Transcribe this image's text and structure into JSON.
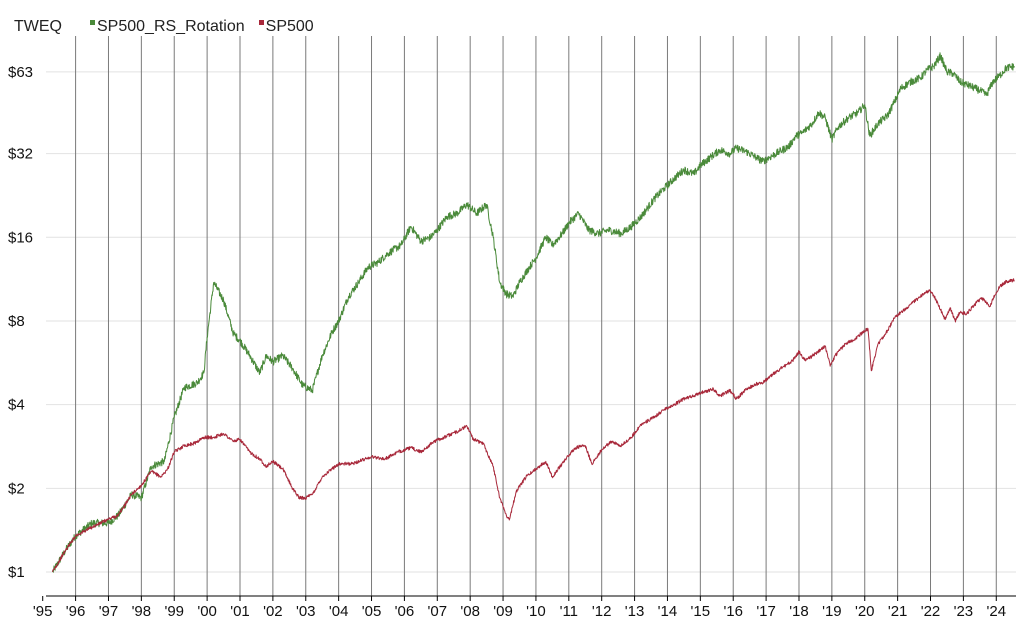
{
  "chart_data": {
    "type": "line",
    "title": "",
    "legend_placement": "top-left",
    "legend_prefix": "TWEQ",
    "y_scale": "log2",
    "grid": {
      "vertical": true,
      "horizontal": true
    },
    "xlim": [
      1995.1,
      2024.6
    ],
    "ylim": [
      0.82,
      82
    ],
    "y_ticks": [
      {
        "value": 1,
        "label": "$1"
      },
      {
        "value": 2,
        "label": "$2"
      },
      {
        "value": 4,
        "label": "$4"
      },
      {
        "value": 8,
        "label": "$8"
      },
      {
        "value": 16,
        "label": "$16"
      },
      {
        "value": 32,
        "label": "$32"
      },
      {
        "value": 63,
        "label": "$63"
      }
    ],
    "x_ticks": [
      {
        "value": 1995,
        "label": "'95"
      },
      {
        "value": 1996,
        "label": "'96"
      },
      {
        "value": 1997,
        "label": "'97"
      },
      {
        "value": 1998,
        "label": "'98"
      },
      {
        "value": 1999,
        "label": "'99"
      },
      {
        "value": 2000,
        "label": "'00"
      },
      {
        "value": 2001,
        "label": "'01"
      },
      {
        "value": 2002,
        "label": "'02"
      },
      {
        "value": 2003,
        "label": "'03"
      },
      {
        "value": 2004,
        "label": "'04"
      },
      {
        "value": 2005,
        "label": "'05"
      },
      {
        "value": 2006,
        "label": "'06"
      },
      {
        "value": 2007,
        "label": "'07"
      },
      {
        "value": 2008,
        "label": "'08"
      },
      {
        "value": 2009,
        "label": "'09"
      },
      {
        "value": 2010,
        "label": "'10"
      },
      {
        "value": 2011,
        "label": "'11"
      },
      {
        "value": 2012,
        "label": "'12"
      },
      {
        "value": 2013,
        "label": "'13"
      },
      {
        "value": 2014,
        "label": "'14"
      },
      {
        "value": 2015,
        "label": "'15"
      },
      {
        "value": 2016,
        "label": "'16"
      },
      {
        "value": 2017,
        "label": "'17"
      },
      {
        "value": 2018,
        "label": "'18"
      },
      {
        "value": 2019,
        "label": "'19"
      },
      {
        "value": 2020,
        "label": "'20"
      },
      {
        "value": 2021,
        "label": "'21"
      },
      {
        "value": 2022,
        "label": "'22"
      },
      {
        "value": 2023,
        "label": "'23"
      },
      {
        "value": 2024,
        "label": "'24"
      }
    ],
    "series": [
      {
        "name": "SP500_RS_Rotation",
        "color": "#4a8a3a",
        "points": [
          [
            1995.3,
            1.0
          ],
          [
            1995.7,
            1.2
          ],
          [
            1996.0,
            1.35
          ],
          [
            1996.5,
            1.5
          ],
          [
            1997.0,
            1.5
          ],
          [
            1997.3,
            1.6
          ],
          [
            1997.7,
            1.9
          ],
          [
            1998.0,
            1.85
          ],
          [
            1998.3,
            2.4
          ],
          [
            1998.7,
            2.5
          ],
          [
            1999.0,
            3.6
          ],
          [
            1999.3,
            4.6
          ],
          [
            1999.7,
            4.8
          ],
          [
            1999.9,
            5.2
          ],
          [
            2000.0,
            7.0
          ],
          [
            2000.2,
            11.0
          ],
          [
            2000.5,
            9.5
          ],
          [
            2000.8,
            7.2
          ],
          [
            2001.0,
            6.8
          ],
          [
            2001.3,
            6.0
          ],
          [
            2001.6,
            5.2
          ],
          [
            2001.8,
            6.0
          ],
          [
            2002.0,
            5.7
          ],
          [
            2002.3,
            6.0
          ],
          [
            2002.6,
            5.4
          ],
          [
            2002.9,
            4.7
          ],
          [
            2003.2,
            4.5
          ],
          [
            2003.5,
            6.0
          ],
          [
            2003.8,
            7.3
          ],
          [
            2004.0,
            8.0
          ],
          [
            2004.3,
            9.8
          ],
          [
            2004.6,
            11.0
          ],
          [
            2004.9,
            12.5
          ],
          [
            2005.2,
            13.0
          ],
          [
            2005.5,
            14.0
          ],
          [
            2005.9,
            15.0
          ],
          [
            2006.2,
            17.5
          ],
          [
            2006.5,
            15.5
          ],
          [
            2006.8,
            16.0
          ],
          [
            2007.0,
            17.0
          ],
          [
            2007.3,
            19.0
          ],
          [
            2007.6,
            19.5
          ],
          [
            2007.9,
            21.0
          ],
          [
            2008.2,
            19.5
          ],
          [
            2008.5,
            21.0
          ],
          [
            2008.7,
            16.0
          ],
          [
            2008.9,
            11.0
          ],
          [
            2009.1,
            10.0
          ],
          [
            2009.3,
            9.8
          ],
          [
            2009.5,
            11.0
          ],
          [
            2009.8,
            12.5
          ],
          [
            2010.0,
            13.5
          ],
          [
            2010.3,
            16.0
          ],
          [
            2010.5,
            15.0
          ],
          [
            2010.8,
            16.5
          ],
          [
            2011.0,
            18.0
          ],
          [
            2011.3,
            19.5
          ],
          [
            2011.6,
            17.0
          ],
          [
            2011.9,
            16.5
          ],
          [
            2012.2,
            17.0
          ],
          [
            2012.6,
            16.5
          ],
          [
            2012.9,
            17.5
          ],
          [
            2013.2,
            19.0
          ],
          [
            2013.6,
            22.0
          ],
          [
            2013.9,
            24.0
          ],
          [
            2014.2,
            26.0
          ],
          [
            2014.5,
            28.0
          ],
          [
            2014.8,
            27.0
          ],
          [
            2015.0,
            29.0
          ],
          [
            2015.3,
            31.0
          ],
          [
            2015.6,
            33.0
          ],
          [
            2015.9,
            32.0
          ],
          [
            2016.1,
            33.5
          ],
          [
            2016.4,
            32.5
          ],
          [
            2016.7,
            31.0
          ],
          [
            2016.9,
            30.0
          ],
          [
            2017.1,
            31.0
          ],
          [
            2017.4,
            32.5
          ],
          [
            2017.7,
            34.0
          ],
          [
            2017.9,
            37.0
          ],
          [
            2018.1,
            38.0
          ],
          [
            2018.4,
            41.0
          ],
          [
            2018.6,
            45.0
          ],
          [
            2018.8,
            43.0
          ],
          [
            2019.0,
            36.0
          ],
          [
            2019.2,
            40.0
          ],
          [
            2019.5,
            43.0
          ],
          [
            2019.8,
            45.0
          ],
          [
            2020.0,
            48.0
          ],
          [
            2020.15,
            37.0
          ],
          [
            2020.4,
            41.0
          ],
          [
            2020.7,
            44.0
          ],
          [
            2020.9,
            49.0
          ],
          [
            2021.1,
            55.0
          ],
          [
            2021.4,
            58.0
          ],
          [
            2021.7,
            60.0
          ],
          [
            2021.9,
            64.0
          ],
          [
            2022.1,
            66.0
          ],
          [
            2022.3,
            72.0
          ],
          [
            2022.5,
            63.0
          ],
          [
            2022.7,
            62.0
          ],
          [
            2022.9,
            58.0
          ],
          [
            2023.2,
            56.0
          ],
          [
            2023.5,
            54.0
          ],
          [
            2023.7,
            52.0
          ],
          [
            2023.9,
            58.0
          ],
          [
            2024.1,
            61.0
          ],
          [
            2024.3,
            65.0
          ],
          [
            2024.55,
            66.0
          ]
        ]
      },
      {
        "name": "SP500",
        "color": "#a8283a",
        "points": [
          [
            1995.3,
            1.0
          ],
          [
            1995.7,
            1.2
          ],
          [
            1996.0,
            1.35
          ],
          [
            1996.5,
            1.45
          ],
          [
            1997.0,
            1.55
          ],
          [
            1997.3,
            1.6
          ],
          [
            1997.7,
            1.9
          ],
          [
            1998.0,
            2.05
          ],
          [
            1998.3,
            2.3
          ],
          [
            1998.6,
            2.2
          ],
          [
            1998.8,
            2.35
          ],
          [
            1999.0,
            2.7
          ],
          [
            1999.3,
            2.85
          ],
          [
            1999.6,
            2.9
          ],
          [
            1999.9,
            3.05
          ],
          [
            2000.2,
            3.05
          ],
          [
            2000.5,
            3.15
          ],
          [
            2000.8,
            2.95
          ],
          [
            2001.0,
            3.0
          ],
          [
            2001.3,
            2.7
          ],
          [
            2001.6,
            2.55
          ],
          [
            2001.8,
            2.4
          ],
          [
            2002.0,
            2.5
          ],
          [
            2002.3,
            2.35
          ],
          [
            2002.6,
            2.0
          ],
          [
            2002.8,
            1.85
          ],
          [
            2003.0,
            1.85
          ],
          [
            2003.2,
            1.9
          ],
          [
            2003.5,
            2.2
          ],
          [
            2003.8,
            2.35
          ],
          [
            2004.0,
            2.45
          ],
          [
            2004.4,
            2.45
          ],
          [
            2004.8,
            2.55
          ],
          [
            2005.0,
            2.6
          ],
          [
            2005.4,
            2.55
          ],
          [
            2005.8,
            2.7
          ],
          [
            2006.2,
            2.8
          ],
          [
            2006.5,
            2.7
          ],
          [
            2006.9,
            2.95
          ],
          [
            2007.2,
            3.05
          ],
          [
            2007.6,
            3.2
          ],
          [
            2007.9,
            3.35
          ],
          [
            2008.1,
            3.0
          ],
          [
            2008.4,
            2.9
          ],
          [
            2008.7,
            2.4
          ],
          [
            2008.9,
            1.85
          ],
          [
            2009.1,
            1.6
          ],
          [
            2009.2,
            1.55
          ],
          [
            2009.4,
            1.95
          ],
          [
            2009.7,
            2.2
          ],
          [
            2010.0,
            2.35
          ],
          [
            2010.3,
            2.5
          ],
          [
            2010.5,
            2.2
          ],
          [
            2010.9,
            2.55
          ],
          [
            2011.2,
            2.8
          ],
          [
            2011.5,
            2.85
          ],
          [
            2011.7,
            2.45
          ],
          [
            2012.0,
            2.75
          ],
          [
            2012.3,
            2.95
          ],
          [
            2012.6,
            2.85
          ],
          [
            2012.9,
            3.05
          ],
          [
            2013.2,
            3.4
          ],
          [
            2013.6,
            3.6
          ],
          [
            2013.9,
            3.85
          ],
          [
            2014.2,
            4.0
          ],
          [
            2014.5,
            4.2
          ],
          [
            2014.8,
            4.3
          ],
          [
            2015.1,
            4.45
          ],
          [
            2015.4,
            4.55
          ],
          [
            2015.6,
            4.3
          ],
          [
            2015.9,
            4.5
          ],
          [
            2016.1,
            4.2
          ],
          [
            2016.4,
            4.55
          ],
          [
            2016.7,
            4.75
          ],
          [
            2016.9,
            4.8
          ],
          [
            2017.2,
            5.15
          ],
          [
            2017.5,
            5.45
          ],
          [
            2017.8,
            5.75
          ],
          [
            2018.0,
            6.2
          ],
          [
            2018.2,
            5.75
          ],
          [
            2018.5,
            6.1
          ],
          [
            2018.8,
            6.5
          ],
          [
            2018.95,
            5.5
          ],
          [
            2019.1,
            6.0
          ],
          [
            2019.4,
            6.6
          ],
          [
            2019.7,
            6.9
          ],
          [
            2019.95,
            7.3
          ],
          [
            2020.1,
            7.5
          ],
          [
            2020.2,
            5.3
          ],
          [
            2020.4,
            6.6
          ],
          [
            2020.7,
            7.4
          ],
          [
            2020.9,
            8.2
          ],
          [
            2021.1,
            8.6
          ],
          [
            2021.4,
            9.2
          ],
          [
            2021.7,
            9.8
          ],
          [
            2021.95,
            10.3
          ],
          [
            2022.1,
            9.9
          ],
          [
            2022.3,
            8.8
          ],
          [
            2022.45,
            8.1
          ],
          [
            2022.6,
            8.9
          ],
          [
            2022.75,
            8.0
          ],
          [
            2022.9,
            8.6
          ],
          [
            2023.1,
            8.5
          ],
          [
            2023.4,
            9.3
          ],
          [
            2023.55,
            9.7
          ],
          [
            2023.8,
            9.0
          ],
          [
            2023.95,
            9.9
          ],
          [
            2024.1,
            10.6
          ],
          [
            2024.3,
            11.1
          ],
          [
            2024.55,
            11.2
          ]
        ]
      }
    ]
  }
}
